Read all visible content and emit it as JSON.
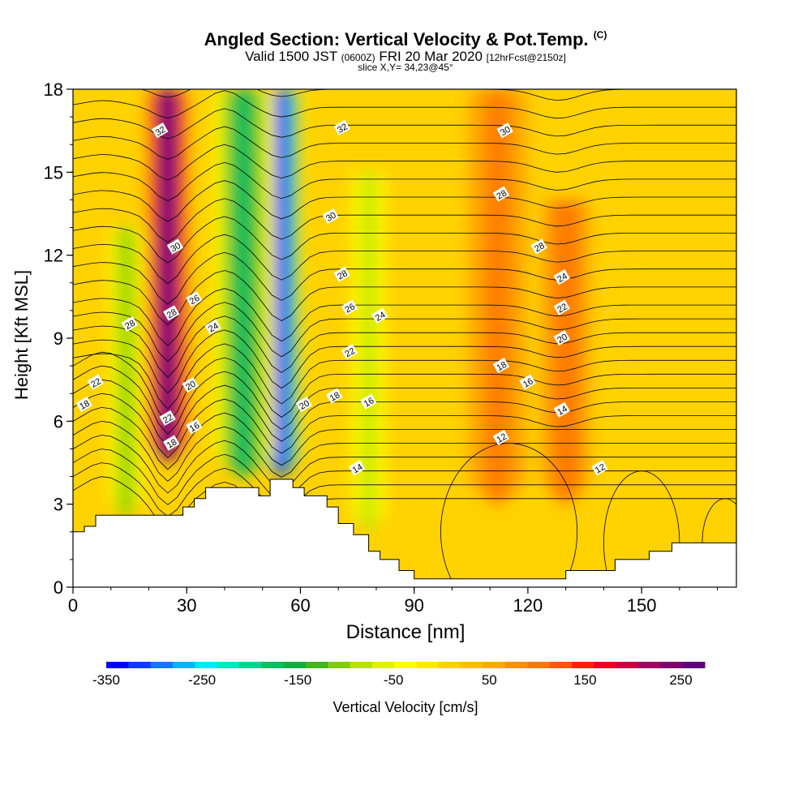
{
  "header": {
    "title_main": "Angled Section: Vertical Velocity & Pot.Temp.",
    "title_copyright": "(C)",
    "valid_pre": "Valid 1500 JST",
    "valid_utc": "(0600Z)",
    "valid_post": "FRI 20 Mar 2020",
    "forecast": "[12hrFcst@2150z]",
    "slice": "slice X,Y= 34,23@45°"
  },
  "chart_data": {
    "type": "heatmap",
    "title": "Angled Section: Vertical Velocity & Pot.Temp.",
    "xlabel": "Distance [nm]",
    "ylabel": "Height [Kft MSL]",
    "xlim": [
      0,
      175
    ],
    "ylim": [
      0,
      18
    ],
    "x_ticks": [
      0,
      30,
      60,
      90,
      120,
      150
    ],
    "y_ticks": [
      0,
      3,
      6,
      9,
      12,
      15,
      18
    ],
    "colorbar": {
      "label": "Vertical Velocity [cm/s]",
      "range": [
        -350,
        275
      ],
      "tick_values": [
        -350,
        -250,
        -150,
        -50,
        50,
        150,
        250
      ],
      "colors": [
        "#0000ff",
        "#0a3cff",
        "#1478ff",
        "#00b4ff",
        "#00e8ff",
        "#00e8c0",
        "#00d490",
        "#00c060",
        "#10b040",
        "#40b818",
        "#80cc10",
        "#b8e000",
        "#e0f000",
        "#ffff00",
        "#ffe800",
        "#ffd000",
        "#ffbc00",
        "#ffa800",
        "#ff9000",
        "#ff7800",
        "#ff5800",
        "#ff2000",
        "#e80020",
        "#c80040",
        "#a00060",
        "#800070",
        "#600080"
      ]
    },
    "vertical_velocity_features": [
      {
        "x_center": 25,
        "peak": 275,
        "height_from": 4.5,
        "height_to": 18,
        "width": 4
      },
      {
        "x_center": 55,
        "peak": -350,
        "height_from": 4,
        "height_to": 18,
        "width": 4
      },
      {
        "x_center": 45,
        "peak": -180,
        "height_from": 4,
        "height_to": 18,
        "width": 6
      },
      {
        "x_center": 14,
        "peak": -100,
        "height_from": 2.5,
        "height_to": 13,
        "width": 4
      },
      {
        "x_center": 78,
        "peak": -80,
        "height_from": 2,
        "height_to": 15,
        "width": 4
      },
      {
        "x_center": 112,
        "peak": 90,
        "height_from": 3,
        "height_to": 18,
        "width": 6
      },
      {
        "x_center": 130,
        "peak": 110,
        "height_from": 3,
        "height_to": 14,
        "width": 5
      }
    ],
    "theta_contours": [
      12,
      14,
      16,
      18,
      20,
      22,
      24,
      26,
      28,
      30,
      32
    ],
    "contour_labels": [
      {
        "x": 23,
        "y": 16.5,
        "text": "32"
      },
      {
        "x": 27,
        "y": 12.3,
        "text": "30"
      },
      {
        "x": 26,
        "y": 9.9,
        "text": "28"
      },
      {
        "x": 32,
        "y": 10.4,
        "text": "26"
      },
      {
        "x": 37,
        "y": 9.4,
        "text": "24"
      },
      {
        "x": 31,
        "y": 7.3,
        "text": "20"
      },
      {
        "x": 25,
        "y": 6.1,
        "text": "22"
      },
      {
        "x": 32,
        "y": 5.8,
        "text": "16"
      },
      {
        "x": 26,
        "y": 5.2,
        "text": "18"
      },
      {
        "x": 15,
        "y": 9.5,
        "text": "28"
      },
      {
        "x": 6,
        "y": 7.4,
        "text": "22"
      },
      {
        "x": 3,
        "y": 6.6,
        "text": "18"
      },
      {
        "x": 71,
        "y": 16.6,
        "text": "32"
      },
      {
        "x": 68,
        "y": 13.4,
        "text": "30"
      },
      {
        "x": 71,
        "y": 11.3,
        "text": "28"
      },
      {
        "x": 73,
        "y": 10.1,
        "text": "26"
      },
      {
        "x": 81,
        "y": 9.8,
        "text": "24"
      },
      {
        "x": 73,
        "y": 8.5,
        "text": "22"
      },
      {
        "x": 61,
        "y": 6.6,
        "text": "20"
      },
      {
        "x": 69,
        "y": 6.9,
        "text": "18"
      },
      {
        "x": 78,
        "y": 6.7,
        "text": "16"
      },
      {
        "x": 75,
        "y": 4.3,
        "text": "14"
      },
      {
        "x": 114,
        "y": 16.5,
        "text": "30"
      },
      {
        "x": 113,
        "y": 14.2,
        "text": "28"
      },
      {
        "x": 123,
        "y": 12.3,
        "text": "28"
      },
      {
        "x": 129,
        "y": 11.2,
        "text": "24"
      },
      {
        "x": 129,
        "y": 10.1,
        "text": "22"
      },
      {
        "x": 129,
        "y": 9.0,
        "text": "20"
      },
      {
        "x": 113,
        "y": 8.0,
        "text": "18"
      },
      {
        "x": 120,
        "y": 7.4,
        "text": "16"
      },
      {
        "x": 129,
        "y": 6.4,
        "text": "14"
      },
      {
        "x": 113,
        "y": 5.4,
        "text": "12"
      },
      {
        "x": 139,
        "y": 4.3,
        "text": "12"
      }
    ],
    "terrain": [
      [
        0,
        2.0
      ],
      [
        3,
        2.0
      ],
      [
        3,
        2.2
      ],
      [
        6,
        2.2
      ],
      [
        6,
        2.6
      ],
      [
        20,
        2.6
      ],
      [
        20,
        2.6
      ],
      [
        29,
        2.6
      ],
      [
        29,
        2.9
      ],
      [
        32,
        2.9
      ],
      [
        32,
        3.2
      ],
      [
        35,
        3.2
      ],
      [
        35,
        3.6
      ],
      [
        49,
        3.6
      ],
      [
        49,
        3.3
      ],
      [
        52,
        3.3
      ],
      [
        52,
        3.9
      ],
      [
        58,
        3.9
      ],
      [
        58,
        3.6
      ],
      [
        61,
        3.6
      ],
      [
        61,
        3.3
      ],
      [
        67,
        3.3
      ],
      [
        67,
        2.9
      ],
      [
        70,
        2.9
      ],
      [
        70,
        2.3
      ],
      [
        74,
        2.3
      ],
      [
        74,
        1.9
      ],
      [
        78,
        1.9
      ],
      [
        78,
        1.3
      ],
      [
        81,
        1.3
      ],
      [
        81,
        1.0
      ],
      [
        86,
        1.0
      ],
      [
        86,
        0.6
      ],
      [
        90,
        0.6
      ],
      [
        90,
        0.3
      ],
      [
        130,
        0.3
      ],
      [
        130,
        0.6
      ],
      [
        143,
        0.6
      ],
      [
        143,
        1.0
      ],
      [
        152,
        1.0
      ],
      [
        152,
        1.3
      ],
      [
        158,
        1.3
      ],
      [
        158,
        1.6
      ],
      [
        175,
        1.6
      ]
    ]
  }
}
